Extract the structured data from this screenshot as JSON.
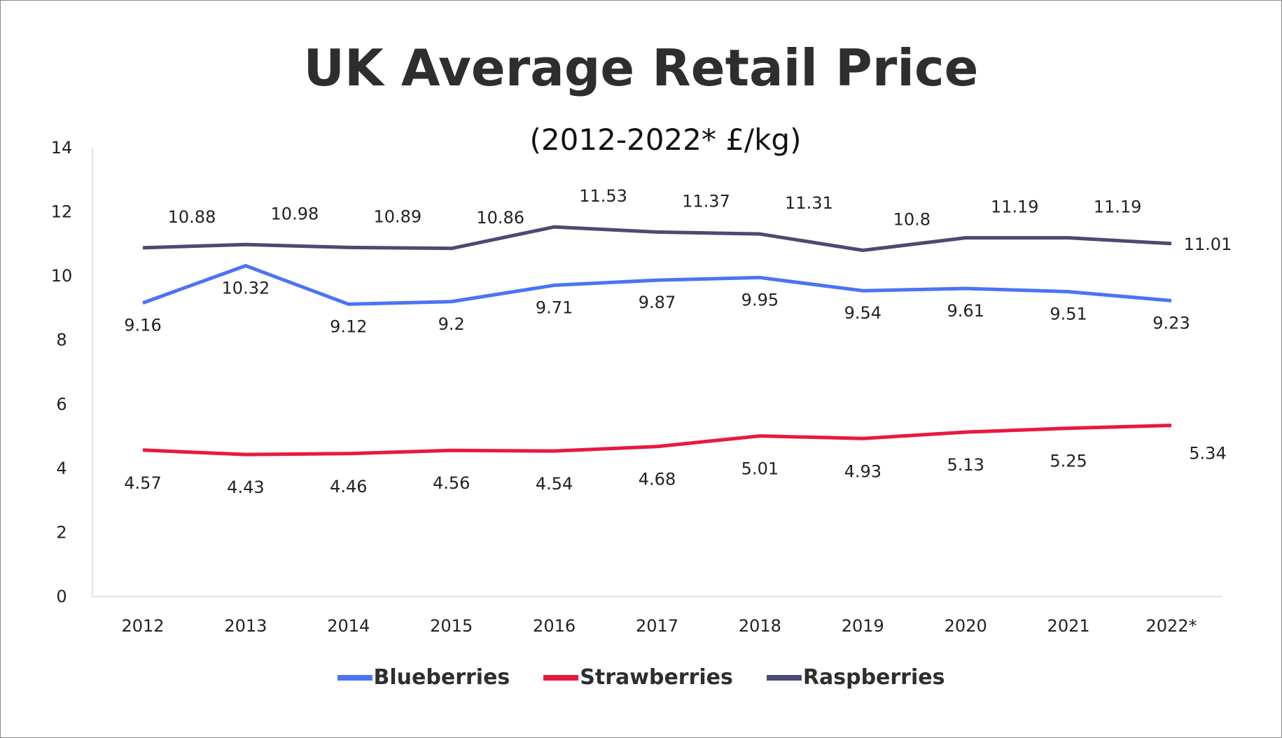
{
  "chart_data": {
    "type": "line",
    "title": "UK Average Retail Price",
    "subtitle": "(2012-2022* £/kg)",
    "categories": [
      "2012",
      "2013",
      "2014",
      "2015",
      "2016",
      "2017",
      "2018",
      "2019",
      "2020",
      "2021",
      "2022*"
    ],
    "ylim": [
      0,
      14
    ],
    "yticks": [
      0,
      2,
      4,
      6,
      8,
      10,
      12,
      14
    ],
    "grid": false,
    "legend": "bottom",
    "series": [
      {
        "name": "Blueberries",
        "color": "#4a74f5",
        "values": [
          9.16,
          10.32,
          9.12,
          9.2,
          9.71,
          9.87,
          9.95,
          9.54,
          9.61,
          9.51,
          9.23
        ],
        "labels": [
          "9.16",
          "10.32",
          "9.12",
          "9.2",
          "9.71",
          "9.87",
          "9.95",
          "9.54",
          "9.61",
          "9.51",
          "9.23"
        ]
      },
      {
        "name": "Strawberries",
        "color": "#e8193f",
        "values": [
          4.57,
          4.43,
          4.46,
          4.56,
          4.54,
          4.68,
          5.01,
          4.93,
          5.13,
          5.25,
          5.34
        ],
        "labels": [
          "4.57",
          "4.43",
          "4.46",
          "4.56",
          "4.54",
          "4.68",
          "5.01",
          "4.93",
          "5.13",
          "5.25",
          "5.34"
        ]
      },
      {
        "name": "Raspberries",
        "color": "#4b4a72",
        "values": [
          10.88,
          10.98,
          10.89,
          10.86,
          11.53,
          11.37,
          11.31,
          10.8,
          11.19,
          11.19,
          11.01
        ],
        "labels": [
          "10.88",
          "10.98",
          "10.89",
          "10.86",
          "11.53",
          "11.37",
          "11.31",
          "10.8",
          "11.19",
          "11.19",
          "11.01"
        ]
      }
    ]
  }
}
